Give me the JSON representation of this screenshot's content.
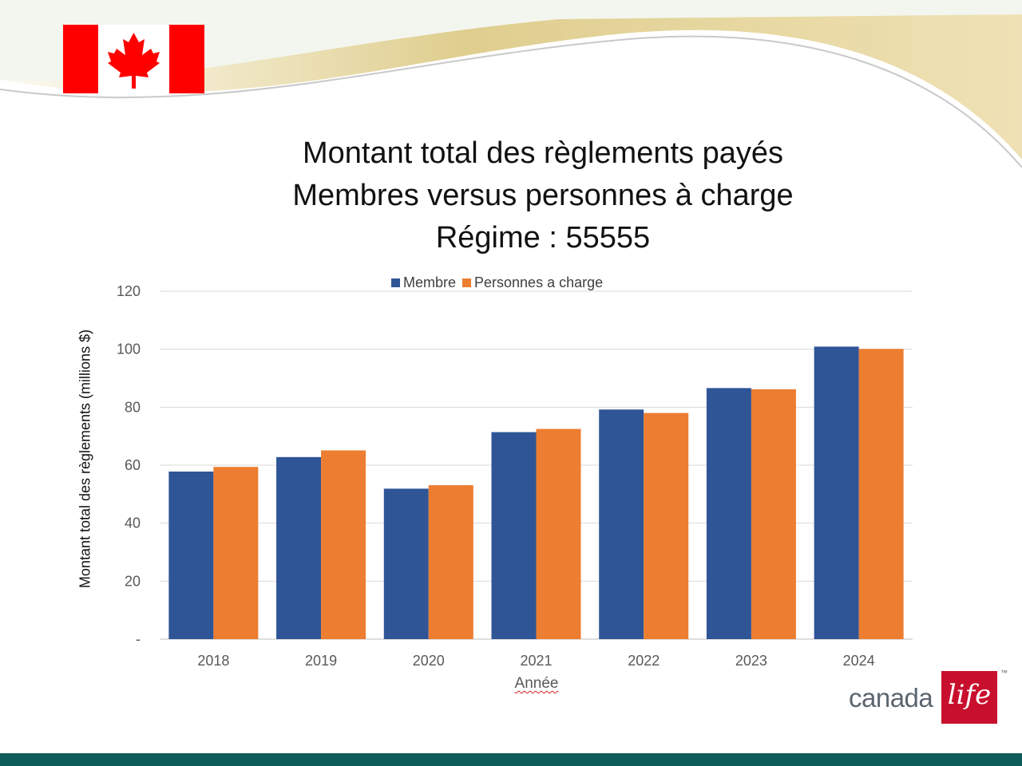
{
  "slide": {
    "title_lines": [
      "Montant total des règlements payés",
      "Membres versus personnes à charge",
      "Régime : 55555"
    ],
    "logo": {
      "text": "canada",
      "script": "life",
      "tm": "™"
    }
  },
  "colors": {
    "membre": "#2f5597",
    "personnes": "#ed7d31",
    "gridline": "#d9d9d9",
    "bottom_bar": "#0e5c59",
    "flag_red": "#ff0000"
  },
  "chart_data": {
    "type": "bar",
    "title": "Montant total des règlements payés Membres versus personnes à charge Régime : 55555",
    "xlabel": "Année",
    "ylabel": "Montant total des règlements (millions $)",
    "categories": [
      "2018",
      "2019",
      "2020",
      "2021",
      "2022",
      "2023",
      "2024"
    ],
    "series": [
      {
        "name": "Membre",
        "values": [
          57.8,
          62.8,
          51.9,
          71.4,
          79.2,
          86.6,
          100.9
        ]
      },
      {
        "name": "Personnes a charge",
        "values": [
          59.4,
          65.1,
          53.1,
          72.5,
          78.0,
          86.2,
          100.1
        ]
      }
    ],
    "ylim": [
      0,
      120
    ],
    "yticks": [
      "-",
      "20",
      "40",
      "60",
      "80",
      "100",
      "120"
    ],
    "grid": true,
    "legend": "top-center"
  }
}
